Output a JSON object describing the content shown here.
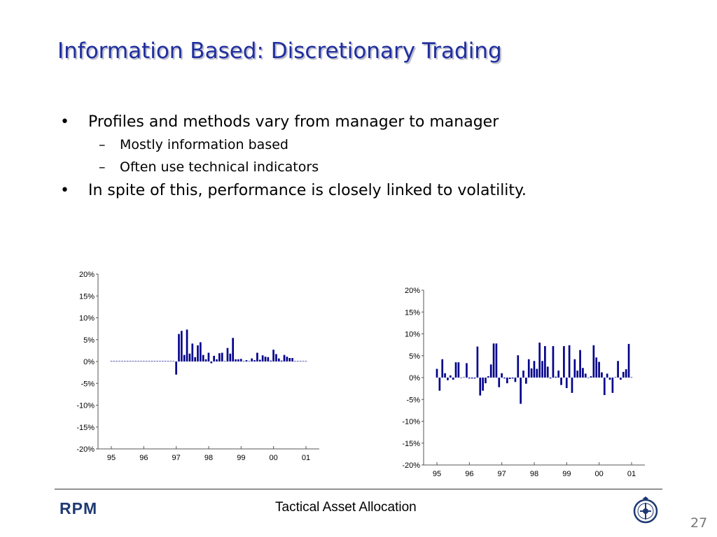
{
  "slide": {
    "title": "Information Based: Discretionary Trading",
    "bullets": [
      {
        "text": "Profiles and methods vary from manager to manager"
      },
      {
        "text": "Mostly information based",
        "level": 2
      },
      {
        "text": "Often use technical indicators",
        "level": 2
      },
      {
        "text": "In spite of this, performance is closely linked to volatility."
      }
    ],
    "bullet_symbol": "•",
    "sub_bullet_symbol": "–"
  },
  "footer": {
    "logo_text": "RPM",
    "center_text": "Tactical Asset Allocation",
    "page_number": "27",
    "crest_icon": "university-crest-icon"
  },
  "colors": {
    "title": "#1f2f9f",
    "bars": "#00008b",
    "logo": "#1f3a73"
  },
  "chart_data": [
    {
      "type": "bar",
      "ylim": [
        -20,
        20
      ],
      "yticks": [
        "20%",
        "15%",
        "10%",
        "5%",
        "0%",
        "-5%",
        "-10%",
        "-15%",
        "-20%"
      ],
      "xticks": [
        "95",
        "96",
        "97",
        "98",
        "99",
        "00",
        "01"
      ],
      "xlim": [
        1995,
        2001.2
      ],
      "grid": false,
      "bar_start": 1995.0,
      "bar_step": 0.0833,
      "values": [
        0.1,
        0.1,
        0.1,
        0.1,
        0.1,
        0.1,
        0.1,
        0.1,
        0.1,
        0.1,
        0.1,
        0.1,
        0.1,
        0.1,
        0.1,
        0.1,
        0.1,
        0.1,
        0.1,
        0.1,
        0.1,
        0.1,
        0.1,
        0.1,
        -3,
        6.3,
        7,
        1.5,
        7.3,
        1.8,
        4.1,
        1,
        3.7,
        4.4,
        1.5,
        0.5,
        2,
        -0.4,
        1.3,
        0.5,
        1.9,
        2,
        0.1,
        3.1,
        1.8,
        5.4,
        0.5,
        0.5,
        0.6,
        0.1,
        0.3,
        0.1,
        0.7,
        0.3,
        2,
        0.4,
        1.4,
        1.1,
        1,
        0.2,
        2.7,
        1.7,
        0.7,
        0.2,
        1.5,
        1.1,
        0.8,
        0.8,
        0.1,
        0.1,
        0.1,
        0.1,
        0.1
      ]
    },
    {
      "type": "bar",
      "ylim": [
        -20,
        20
      ],
      "yticks": [
        "20%",
        "15%",
        "10%",
        "5%",
        "0%",
        "-5%",
        "-10%",
        "-15%",
        "-20%"
      ],
      "xticks": [
        "95",
        "96",
        "97",
        "98",
        "99",
        "00",
        "01"
      ],
      "xlim": [
        1995,
        2001.2
      ],
      "grid": false,
      "bar_start": 1995.0,
      "bar_step": 0.0833,
      "values": [
        2,
        -3,
        4.2,
        1,
        -0.6,
        0.5,
        -0.5,
        3.5,
        3.5,
        -0.1,
        0.1,
        3.3,
        -0.2,
        -0.2,
        -0.2,
        7.1,
        -4.1,
        -3,
        -1.3,
        0.3,
        3,
        7.8,
        7.8,
        -2.2,
        1,
        -0.2,
        -1.3,
        -0.3,
        -0.2,
        -1,
        5.1,
        -6,
        1.6,
        -1.4,
        4.2,
        2.1,
        3.8,
        2,
        8,
        3.8,
        7.2,
        2.5,
        -0.2,
        7.2,
        0.2,
        1.6,
        -1.7,
        7.2,
        -2.4,
        7.4,
        -3.5,
        4.2,
        1.6,
        6.3,
        2.2,
        0.9,
        -0.1,
        0.3,
        7.4,
        4.6,
        3.6,
        1.2,
        -4,
        0.9,
        -0.5,
        -3.5,
        0.1,
        3.8,
        -0.5,
        1.3,
        1.9,
        7.7,
        0.1
      ]
    }
  ]
}
